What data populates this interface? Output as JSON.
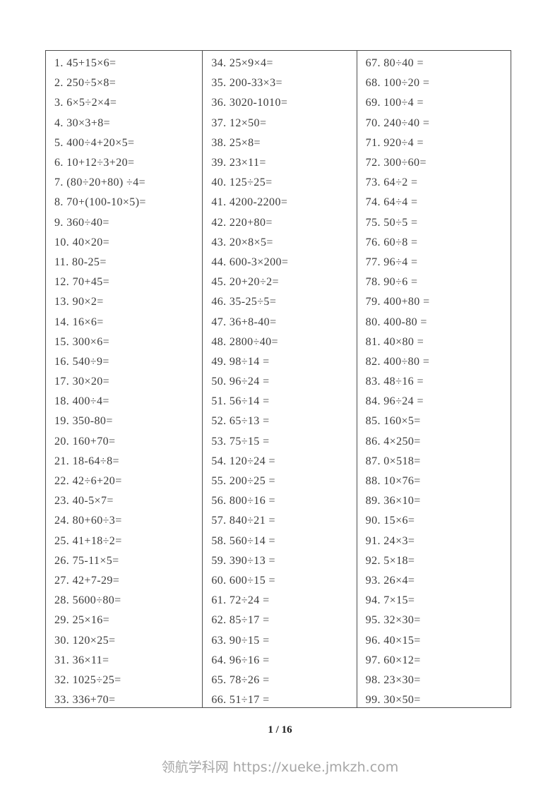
{
  "document": {
    "page_number": "1 / 16",
    "watermark": "领航学科网 https://xueke.jmkzh.com",
    "text_color": "#3b3b3b",
    "border_color": "#4d4d4d",
    "watermark_color": "#a6a6a6",
    "background_color": "#ffffff"
  },
  "worksheet": {
    "columns": [
      {
        "problems": [
          "1. 45+15×6=",
          "2. 250÷5×8=",
          "3. 6×5÷2×4=",
          "4. 30×3+8=",
          "5. 400÷4+20×5=",
          "6. 10+12÷3+20=",
          "7. (80÷20+80) ÷4=",
          "8. 70+(100-10×5)=",
          "9. 360÷40=",
          "10. 40×20=",
          "11. 80-25=",
          "12. 70+45=",
          "13. 90×2=",
          "14. 16×6=",
          "15. 300×6=",
          "16. 540÷9=",
          "17. 30×20=",
          "18. 400÷4=",
          "19. 350-80=",
          "20. 160+70=",
          "21. 18-64÷8=",
          "22. 42÷6+20=",
          "23. 40-5×7=",
          "24. 80+60÷3=",
          "25. 41+18÷2=",
          "26. 75-11×5=",
          "27. 42+7-29=",
          "28. 5600÷80=",
          "29. 25×16=",
          "30. 120×25=",
          "31. 36×11=",
          "32. 1025÷25=",
          "33. 336+70="
        ]
      },
      {
        "problems": [
          "34. 25×9×4=",
          "35. 200-33×3=",
          "36. 3020-1010=",
          "37. 12×50=",
          "38. 25×8=",
          "39. 23×11=",
          "40. 125÷25=",
          "41. 4200-2200=",
          "42. 220+80=",
          "43. 20×8×5=",
          "44. 600-3×200=",
          "45. 20+20÷2=",
          "46. 35-25÷5=",
          "47. 36+8-40=",
          "48. 2800÷40=",
          "49. 98÷14 =",
          "50. 96÷24 =",
          "51. 56÷14 =",
          "52. 65÷13 =",
          "53. 75÷15 =",
          "54. 120÷24 =",
          "55. 200÷25 =",
          "56. 800÷16 =",
          "57. 840÷21 =",
          "58. 560÷14 =",
          "59. 390÷13 =",
          "60. 600÷15 =",
          "61. 72÷24 =",
          "62. 85÷17 =",
          "63. 90÷15 =",
          "64. 96÷16 =",
          "65. 78÷26 =",
          "66. 51÷17 ="
        ]
      },
      {
        "problems": [
          "67. 80÷40 =",
          "68. 100÷20 =",
          "69. 100÷4 =",
          "70. 240÷40 =",
          "71. 920÷4 =",
          "72. 300÷60=",
          "73. 64÷2 =",
          "74. 64÷4 =",
          "75. 50÷5 =",
          "76. 60÷8 =",
          "77. 96÷4 =",
          "78. 90÷6 =",
          "79. 400+80 =",
          "80. 400-80 =",
          "81. 40×80 =",
          "82. 400÷80 =",
          "83. 48÷16 =",
          "84. 96÷24 =",
          "85. 160×5=",
          "86. 4×250=",
          "87. 0×518=",
          "88. 10×76=",
          "89. 36×10=",
          "90. 15×6=",
          "91. 24×3=",
          "92. 5×18=",
          "93. 26×4=",
          "94. 7×15=",
          "95. 32×30=",
          "96. 40×15=",
          "97. 60×12=",
          "98. 23×30=",
          "99. 30×50="
        ]
      }
    ]
  }
}
